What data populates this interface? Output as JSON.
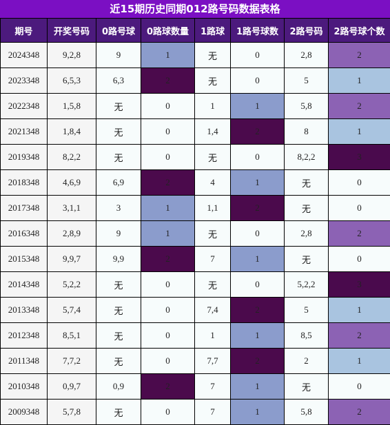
{
  "title": "近15期历史同期012路号码数据表格",
  "columns": [
    "期号",
    "开奖号码",
    "0路号球",
    "0路球数量",
    "1路球",
    "1路号球数",
    "2路号码",
    "2路号球个数"
  ],
  "rows": [
    {
      "period": "2024348",
      "numbers": "9,2,8",
      "r0": "9",
      "r0c": "1",
      "r1": "无",
      "r1c": "0",
      "r2": "2,8",
      "r2c": "2"
    },
    {
      "period": "2023348",
      "numbers": "6,5,3",
      "r0": "6,3",
      "r0c": "2",
      "r1": "无",
      "r1c": "0",
      "r2": "5",
      "r2c": "1"
    },
    {
      "period": "2022348",
      "numbers": "1,5,8",
      "r0": "无",
      "r0c": "0",
      "r1": "1",
      "r1c": "1",
      "r2": "5,8",
      "r2c": "2"
    },
    {
      "period": "2021348",
      "numbers": "1,8,4",
      "r0": "无",
      "r0c": "0",
      "r1": "1,4",
      "r1c": "2",
      "r2": "8",
      "r2c": "1"
    },
    {
      "period": "2019348",
      "numbers": "8,2,2",
      "r0": "无",
      "r0c": "0",
      "r1": "无",
      "r1c": "0",
      "r2": "8,2,2",
      "r2c": "3"
    },
    {
      "period": "2018348",
      "numbers": "4,6,9",
      "r0": "6,9",
      "r0c": "2",
      "r1": "4",
      "r1c": "1",
      "r2": "无",
      "r2c": "0"
    },
    {
      "period": "2017348",
      "numbers": "3,1,1",
      "r0": "3",
      "r0c": "1",
      "r1": "1,1",
      "r1c": "2",
      "r2": "无",
      "r2c": "0"
    },
    {
      "period": "2016348",
      "numbers": "2,8,9",
      "r0": "9",
      "r0c": "1",
      "r1": "无",
      "r1c": "0",
      "r2": "2,8",
      "r2c": "2"
    },
    {
      "period": "2015348",
      "numbers": "9,9,7",
      "r0": "9,9",
      "r0c": "2",
      "r1": "7",
      "r1c": "1",
      "r2": "无",
      "r2c": "0"
    },
    {
      "period": "2014348",
      "numbers": "5,2,2",
      "r0": "无",
      "r0c": "0",
      "r1": "无",
      "r1c": "0",
      "r2": "5,2,2",
      "r2c": "3"
    },
    {
      "period": "2013348",
      "numbers": "5,7,4",
      "r0": "无",
      "r0c": "0",
      "r1": "7,4",
      "r1c": "2",
      "r2": "5",
      "r2c": "1"
    },
    {
      "period": "2012348",
      "numbers": "8,5,1",
      "r0": "无",
      "r0c": "0",
      "r1": "1",
      "r1c": "1",
      "r2": "8,5",
      "r2c": "2"
    },
    {
      "period": "2011348",
      "numbers": "7,7,2",
      "r0": "无",
      "r0c": "0",
      "r1": "7,7",
      "r1c": "2",
      "r2": "2",
      "r2c": "1"
    },
    {
      "period": "2010348",
      "numbers": "0,9,7",
      "r0": "0,9",
      "r0c": "2",
      "r1": "7",
      "r1c": "1",
      "r2": "无",
      "r2c": "0"
    },
    {
      "period": "2009348",
      "numbers": "5,7,8",
      "r0": "无",
      "r0c": "0",
      "r1": "7",
      "r1c": "1",
      "r2": "5,8",
      "r2c": "2"
    }
  ]
}
